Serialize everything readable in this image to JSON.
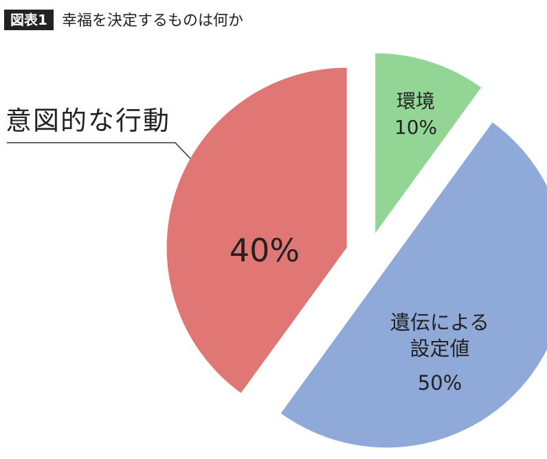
{
  "chart_data": {
    "type": "pie",
    "figure_label": "図表1",
    "title": "幸福を決定するものは何か",
    "categories": [
      "環境",
      "遺伝による設定値",
      "意図的な行動"
    ],
    "values": [
      10,
      50,
      40
    ],
    "value_labels": [
      "10%",
      "50%",
      "40%"
    ],
    "colors": [
      "#92d595",
      "#8fa9d8",
      "#e07774"
    ]
  }
}
